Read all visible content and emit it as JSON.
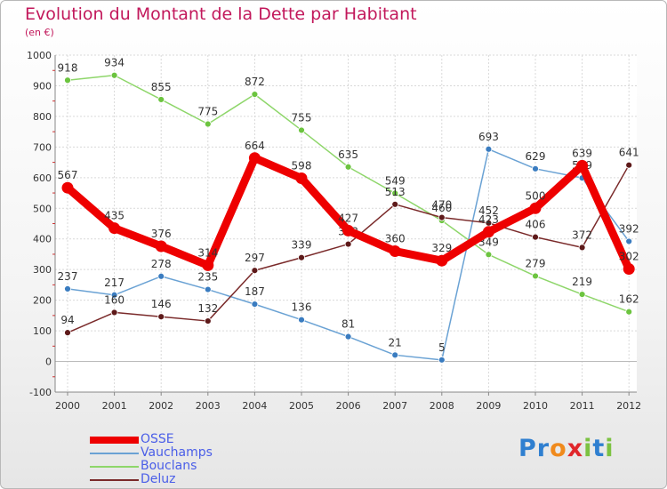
{
  "chart_data": {
    "type": "line",
    "title": "Evolution du Montant de la Dette par Habitant",
    "unit_label": "(en €)",
    "xlabel": "",
    "ylabel": "",
    "ylim": [
      -100,
      1000
    ],
    "y_ticks": [
      "-100",
      "0",
      "100",
      "200",
      "300",
      "400",
      "500",
      "600",
      "700",
      "800",
      "900",
      "1000"
    ],
    "categories": [
      "2000",
      "2001",
      "2002",
      "2003",
      "2004",
      "2005",
      "2006",
      "2007",
      "2008",
      "2009",
      "2010",
      "2011",
      "2012"
    ],
    "grid": true,
    "legend_position": "bottom-left",
    "series": [
      {
        "name": "OSSE",
        "color": "#ee0000",
        "marker": "#ee0000",
        "values": [
          567,
          435,
          376,
          314,
          664,
          598,
          427,
          360,
          329,
          423,
          500,
          639,
          302
        ],
        "labels": [
          "567",
          "435",
          "376",
          "314",
          "664",
          "598",
          "427",
          "360",
          "329",
          "423",
          "500",
          "639",
          "302"
        ]
      },
      {
        "name": "Vauchamps",
        "color": "#6aa2d4",
        "marker": "#3a7cc0",
        "values": [
          237,
          217,
          278,
          235,
          187,
          136,
          81,
          21,
          5,
          693,
          629,
          599,
          392
        ],
        "labels": [
          "237",
          "217",
          "278",
          "235",
          "187",
          "136",
          "81",
          "21",
          "5",
          "693",
          "629",
          "599",
          "392"
        ]
      },
      {
        "name": "Bouclans",
        "color": "#8ed66a",
        "marker": "#6cc43f",
        "values": [
          918,
          934,
          855,
          775,
          872,
          755,
          635,
          549,
          460,
          349,
          279,
          219,
          162
        ],
        "labels": [
          "918",
          "934",
          "855",
          "775",
          "872",
          "755",
          "635",
          "549",
          "460",
          "349",
          "279",
          "219",
          "162"
        ]
      },
      {
        "name": "Deluz",
        "color": "#7a2a2a",
        "marker": "#5e1a1a",
        "values": [
          94,
          160,
          146,
          132,
          297,
          339,
          383,
          513,
          470,
          452,
          406,
          372,
          641
        ],
        "labels": [
          "94",
          "160",
          "146",
          "132",
          "297",
          "339",
          "383",
          "513",
          "470",
          "452",
          "406",
          "372",
          "641"
        ]
      }
    ]
  },
  "brand": {
    "letters": [
      {
        "ch": "P",
        "color": "#2f7fd0"
      },
      {
        "ch": "r",
        "color": "#2f7fd0"
      },
      {
        "ch": "o",
        "color": "#f08a1c"
      },
      {
        "ch": "x",
        "color": "#e0262b"
      },
      {
        "ch": "i",
        "color": "#7cc242"
      },
      {
        "ch": "t",
        "color": "#2f7fd0"
      },
      {
        "ch": "i",
        "color": "#7cc242"
      }
    ]
  }
}
